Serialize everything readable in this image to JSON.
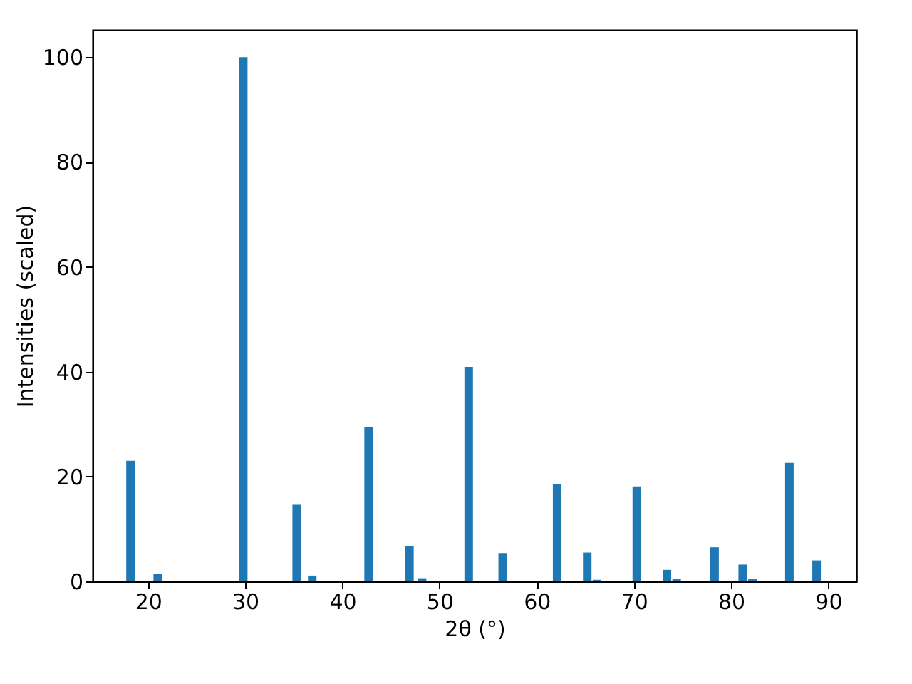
{
  "chart_data": {
    "type": "bar",
    "xlabel": "2θ (°)",
    "ylabel": "Intensities (scaled)",
    "x": [
      18.2,
      21.0,
      29.8,
      35.3,
      36.9,
      42.7,
      46.9,
      48.2,
      53.0,
      56.5,
      62.1,
      65.2,
      66.2,
      70.3,
      73.4,
      74.4,
      78.3,
      81.2,
      82.2,
      86.0,
      88.8
    ],
    "values": [
      23,
      1.4,
      100,
      14.6,
      1.1,
      29.5,
      6.7,
      0.6,
      40.9,
      5.4,
      18.6,
      5.5,
      0.3,
      18.1,
      2.2,
      0.4,
      6.5,
      3.2,
      0.4,
      22.6,
      4.0
    ],
    "color": "#1f77b4",
    "xlim": [
      14.3,
      92.9
    ],
    "ylim": [
      0,
      105.2
    ],
    "xticks": [
      20,
      30,
      40,
      50,
      60,
      70,
      80,
      90
    ],
    "yticks": [
      0,
      20,
      40,
      60,
      80,
      100
    ],
    "grid": false
  }
}
